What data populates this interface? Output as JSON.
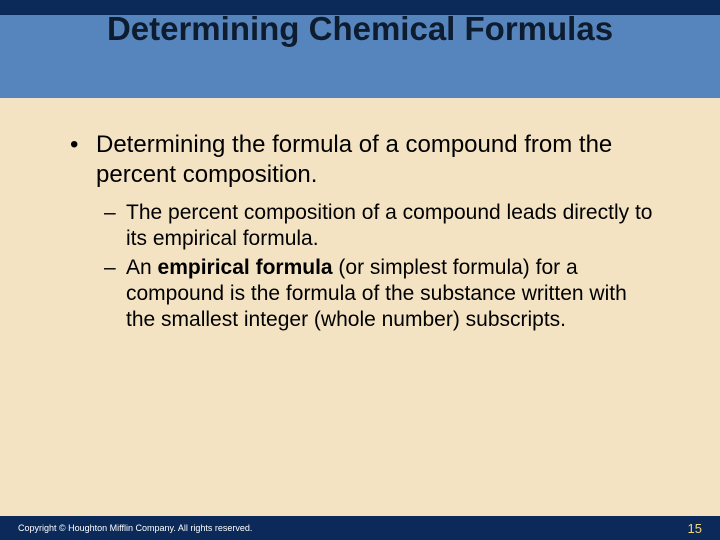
{
  "colors": {
    "background": "#f3e3c3",
    "title_top_stripe": "#0b2a59",
    "title_main_stripe": "#5684bd",
    "title_text": "#0e1c30",
    "footer_bg": "#0b2a59",
    "footer_text": "#ffffff",
    "footer_pagenum": "#f3d77a",
    "body_text": "#000000"
  },
  "typography": {
    "title_fontsize_pt": 25,
    "bullet_l1_fontsize_pt": 18,
    "bullet_l2_fontsize_pt": 16,
    "footer_fontsize_pt": 7,
    "pagenum_fontsize_pt": 10,
    "font_family": "Arial"
  },
  "slide": {
    "title": "Determining Chemical Formulas",
    "bullets": [
      {
        "level": 1,
        "text": "Determining the formula of a compound from the percent composition."
      },
      {
        "level": 2,
        "text": "The percent composition of a compound leads directly to its empirical formula."
      },
      {
        "level": 2,
        "text_pre": "An ",
        "bold": "empirical formula",
        "text_post": " (or simplest formula) for a compound is the formula of the substance written with the smallest integer (whole number) subscripts."
      }
    ],
    "footer": {
      "copyright": "Copyright © Houghton Mifflin Company. All rights reserved.",
      "page_number": "15"
    }
  }
}
